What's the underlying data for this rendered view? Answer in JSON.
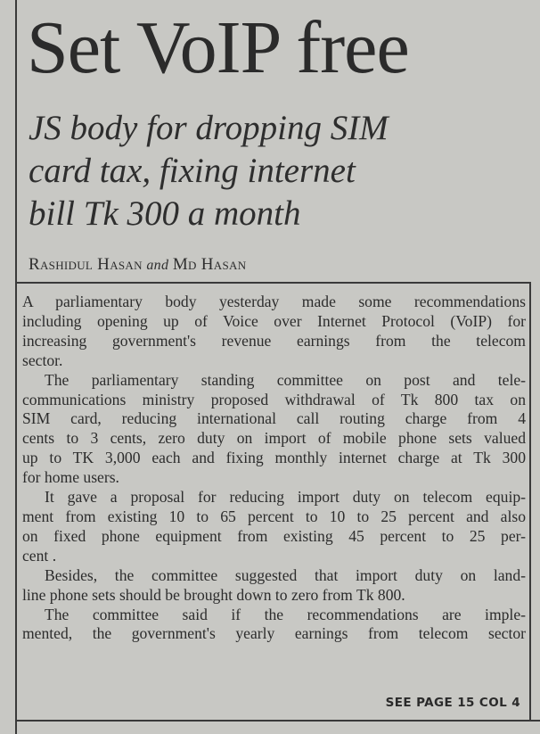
{
  "article": {
    "headline": "Set VoIP free",
    "subhead_lines": [
      "JS body for dropping SIM",
      "card tax, fixing internet",
      "bill Tk 300 a month"
    ],
    "byline": {
      "author1": "Rashidul Hasan",
      "conjunction": "and",
      "author2": "Md Hasan"
    },
    "paragraphs": [
      [
        "A parliamentary body yesterday made some recommendations",
        "including opening up of Voice over Internet Protocol (VoIP) for",
        "increasing government's revenue earnings from the telecom",
        "sector."
      ],
      [
        "The parliamentary standing committee on post and tele-",
        "communications ministry proposed withdrawal of Tk 800 tax on",
        "SIM card, reducing international call routing charge from 4",
        "cents to 3 cents, zero duty on import of mobile phone sets valued",
        "up to TK 3,000 each and fixing monthly internet charge at Tk 300",
        "for home users."
      ],
      [
        "It gave a proposal for reducing import duty on telecom equip-",
        "ment from existing 10 to 65 percent to 10 to 25 percent  and also",
        "on fixed phone equipment from existing 45 percent to 25 per-",
        "cent ."
      ],
      [
        "Besides, the committee suggested that import duty on land-",
        "line phone sets should be brought down to zero from Tk 800."
      ],
      [
        "The committee said if the recommendations are imple-",
        "mented, the government's yearly earnings from telecom sector"
      ]
    ],
    "jump_line": "SEE PAGE 15 COL 4"
  }
}
